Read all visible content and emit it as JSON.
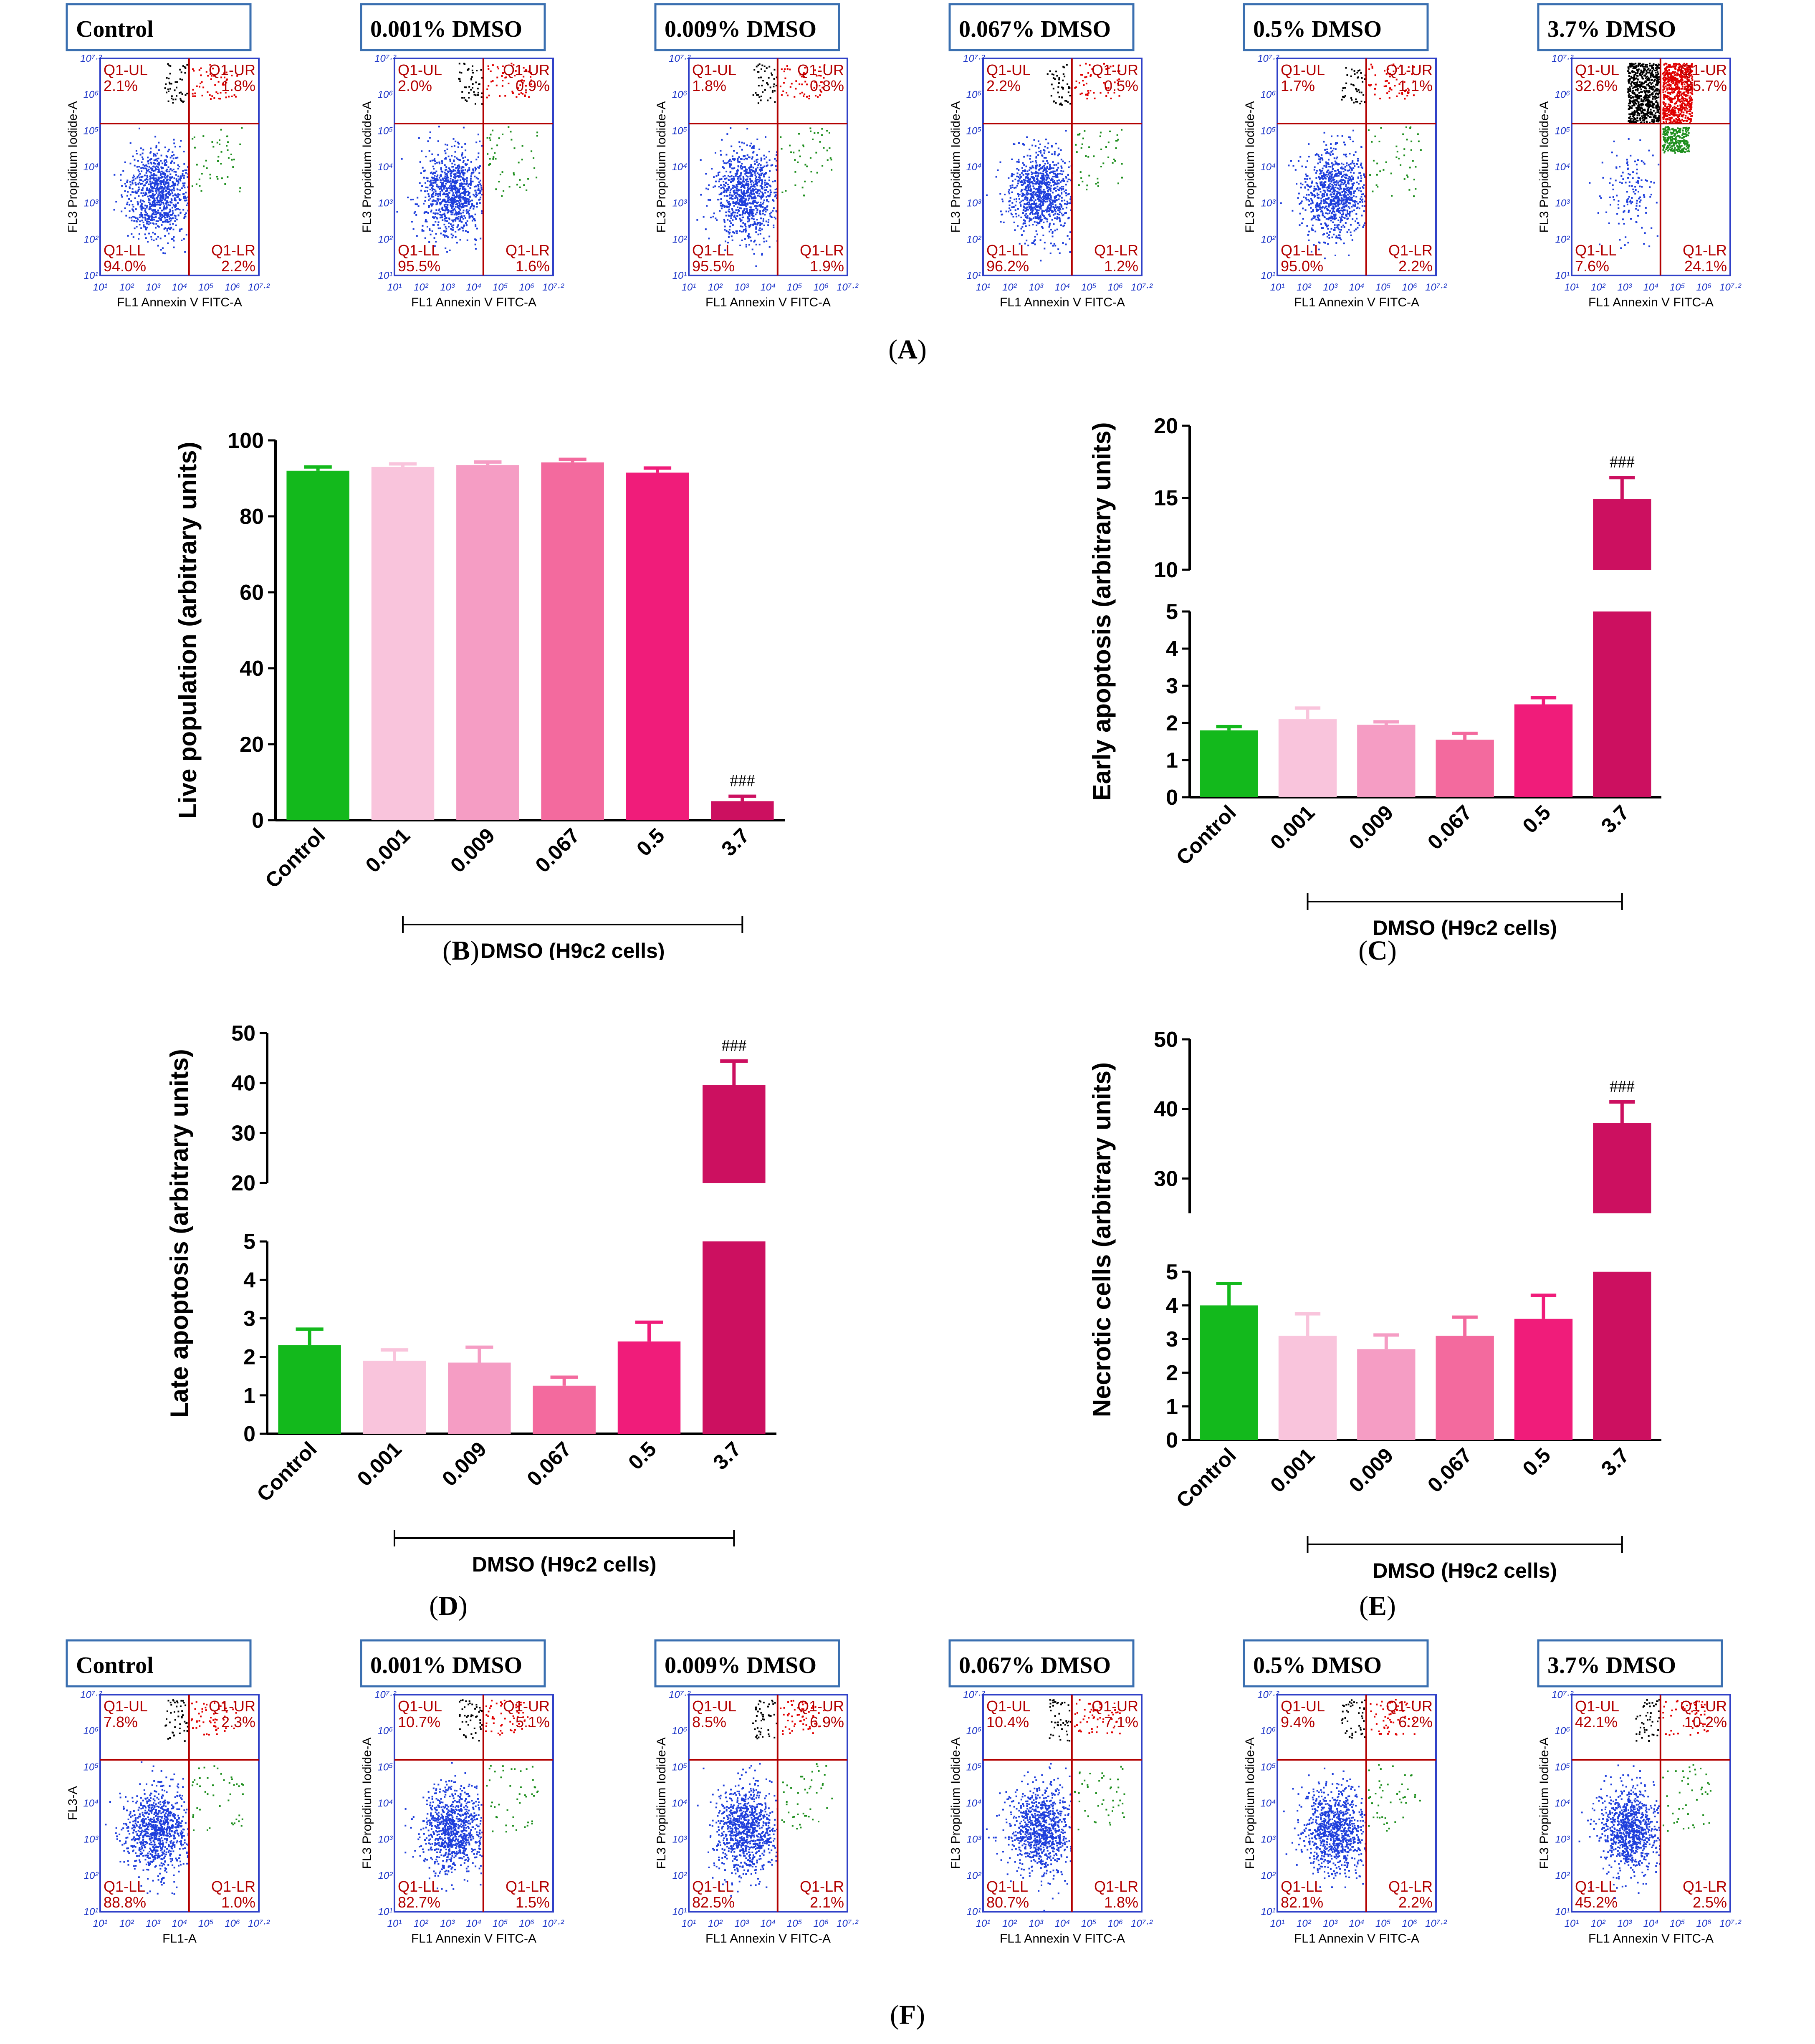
{
  "panel_labels": {
    "A": "A",
    "B": "B",
    "C": "C",
    "D": "D",
    "E": "E",
    "F": "F"
  },
  "colors": {
    "scatter_live": "#1f3fdc",
    "scatter_early": "#1f8f1f",
    "scatter_late": "#e00000",
    "scatter_necrotic": "#000000",
    "quadrant_line": "#b30000",
    "header_border": "#3a6fb0",
    "bars": [
      "#13b91c",
      "#f9c4dc",
      "#f59dc4",
      "#f36a9e",
      "#f01c7a",
      "#cc1060"
    ],
    "axis_tick_blue": "#1a33c7"
  },
  "flow": {
    "x_axis_label": "FL1 Annexin V FITC-A",
    "y_axis_label": "FL3 Propidium Iodide-A",
    "quadrant_names": {
      "UL": "Q1-UL",
      "UR": "Q1-UR",
      "LL": "Q1-LL",
      "LR": "Q1-LR"
    },
    "tick_labels": [
      "10¹",
      "10²",
      "10³",
      "10⁴",
      "10⁵",
      "10⁶",
      "10⁷·²"
    ],
    "row_A": [
      {
        "header": "Control",
        "UL": "2.1%",
        "UR": "1.8%",
        "LL": "94.0%",
        "LR": "2.2%"
      },
      {
        "header": "0.001% DMSO",
        "UL": "2.0%",
        "UR": "0.9%",
        "LL": "95.5%",
        "LR": "1.6%"
      },
      {
        "header": "0.009% DMSO",
        "UL": "1.8%",
        "UR": "0.8%",
        "LL": "95.5%",
        "LR": "1.9%"
      },
      {
        "header": "0.067% DMSO",
        "UL": "2.2%",
        "UR": "0.5%",
        "LL": "96.2%",
        "LR": "1.2%"
      },
      {
        "header": "0.5% DMSO",
        "UL": "1.7%",
        "UR": "1.1%",
        "LL": "95.0%",
        "LR": "2.2%"
      },
      {
        "header": "3.7% DMSO",
        "UL": "32.6%",
        "UR": "35.7%",
        "LL": "7.6%",
        "LR": "24.1%"
      }
    ],
    "row_F": [
      {
        "header": "Control",
        "UL": "7.8%",
        "UR": "2.3%",
        "LL": "88.8%",
        "LR": "1.0%",
        "xlabel": "FL1-A",
        "ylabel": "FL3-A"
      },
      {
        "header": "0.001% DMSO",
        "UL": "10.7%",
        "UR": "5.1%",
        "LL": "82.7%",
        "LR": "1.5%"
      },
      {
        "header": "0.009% DMSO",
        "UL": "8.5%",
        "UR": "6.9%",
        "LL": "82.5%",
        "LR": "2.1%"
      },
      {
        "header": "0.067% DMSO",
        "UL": "10.4%",
        "UR": "7.1%",
        "LL": "80.7%",
        "LR": "1.8%"
      },
      {
        "header": "0.5% DMSO",
        "UL": "9.4%",
        "UR": "6.2%",
        "LL": "82.1%",
        "LR": "2.2%"
      },
      {
        "header": "3.7% DMSO",
        "UL": "42.1%",
        "UR": "10.2%",
        "LL": "45.2%",
        "LR": "2.5%"
      }
    ]
  },
  "chart_data": [
    {
      "id": "B",
      "type": "bar",
      "ylabel": "Live population (arbitrary units)",
      "xlabel": "DMSO (H9c2 cells)",
      "categories": [
        "Control",
        "0.001",
        "0.009",
        "0.067",
        "0.5",
        "3.7"
      ],
      "values": [
        92.0,
        93.0,
        93.5,
        94.2,
        91.5,
        5.0
      ],
      "errors": [
        1.0,
        0.8,
        0.8,
        0.8,
        1.2,
        1.3
      ],
      "ylim": [
        0,
        100
      ],
      "yticks": [
        "0",
        "20",
        "40",
        "60",
        "80",
        "100"
      ],
      "annotations": [
        "",
        "",
        "",
        "",
        "",
        "###"
      ]
    },
    {
      "id": "C",
      "type": "bar",
      "ylabel": "Early apoptosis (arbitrary units)",
      "xlabel": "DMSO (H9c2 cells)",
      "categories": [
        "Control",
        "0.001",
        "0.009",
        "0.067",
        "0.5",
        "3.7"
      ],
      "values": [
        1.8,
        2.1,
        1.95,
        1.55,
        2.5,
        14.9
      ],
      "errors": [
        0.1,
        0.3,
        0.08,
        0.17,
        0.18,
        1.5
      ],
      "axis_break": {
        "lower": [
          0,
          5
        ],
        "upper": [
          10,
          20
        ]
      },
      "yticks_lower": [
        "0",
        "1",
        "2",
        "3",
        "4",
        "5"
      ],
      "yticks_upper": [
        "10",
        "15",
        "20"
      ],
      "annotations": [
        "",
        "",
        "",
        "",
        "",
        "###"
      ]
    },
    {
      "id": "D",
      "type": "bar",
      "ylabel": "Late apoptosis (arbitrary units)",
      "xlabel": "DMSO (H9c2 cells)",
      "categories": [
        "Control",
        "0.001",
        "0.009",
        "0.067",
        "0.5",
        "3.7"
      ],
      "values": [
        2.3,
        1.9,
        1.85,
        1.25,
        2.4,
        39.6
      ],
      "errors": [
        0.42,
        0.28,
        0.4,
        0.22,
        0.5,
        4.8
      ],
      "axis_break": {
        "lower": [
          0,
          5
        ],
        "upper": [
          20,
          50
        ]
      },
      "yticks_lower": [
        "0",
        "1",
        "2",
        "3",
        "4",
        "5"
      ],
      "yticks_upper": [
        "20",
        "30",
        "40",
        "50"
      ],
      "annotations": [
        "",
        "",
        "",
        "",
        "",
        "###"
      ]
    },
    {
      "id": "E",
      "type": "bar",
      "ylabel": "Necrotic cells (arbitrary units)",
      "xlabel": "DMSO (H9c2 cells)",
      "categories": [
        "Control",
        "0.001",
        "0.009",
        "0.067",
        "0.5",
        "3.7"
      ],
      "values": [
        4.0,
        3.1,
        2.7,
        3.1,
        3.6,
        38.0
      ],
      "errors": [
        0.65,
        0.65,
        0.42,
        0.55,
        0.7,
        3.0
      ],
      "axis_break": {
        "lower": [
          0,
          5
        ],
        "upper": [
          25,
          50
        ]
      },
      "yticks_lower": [
        "0",
        "1",
        "2",
        "3",
        "4",
        "5"
      ],
      "yticks_upper": [
        "30",
        "40",
        "50"
      ],
      "annotations": [
        "",
        "",
        "",
        "",
        "",
        "###"
      ]
    }
  ]
}
